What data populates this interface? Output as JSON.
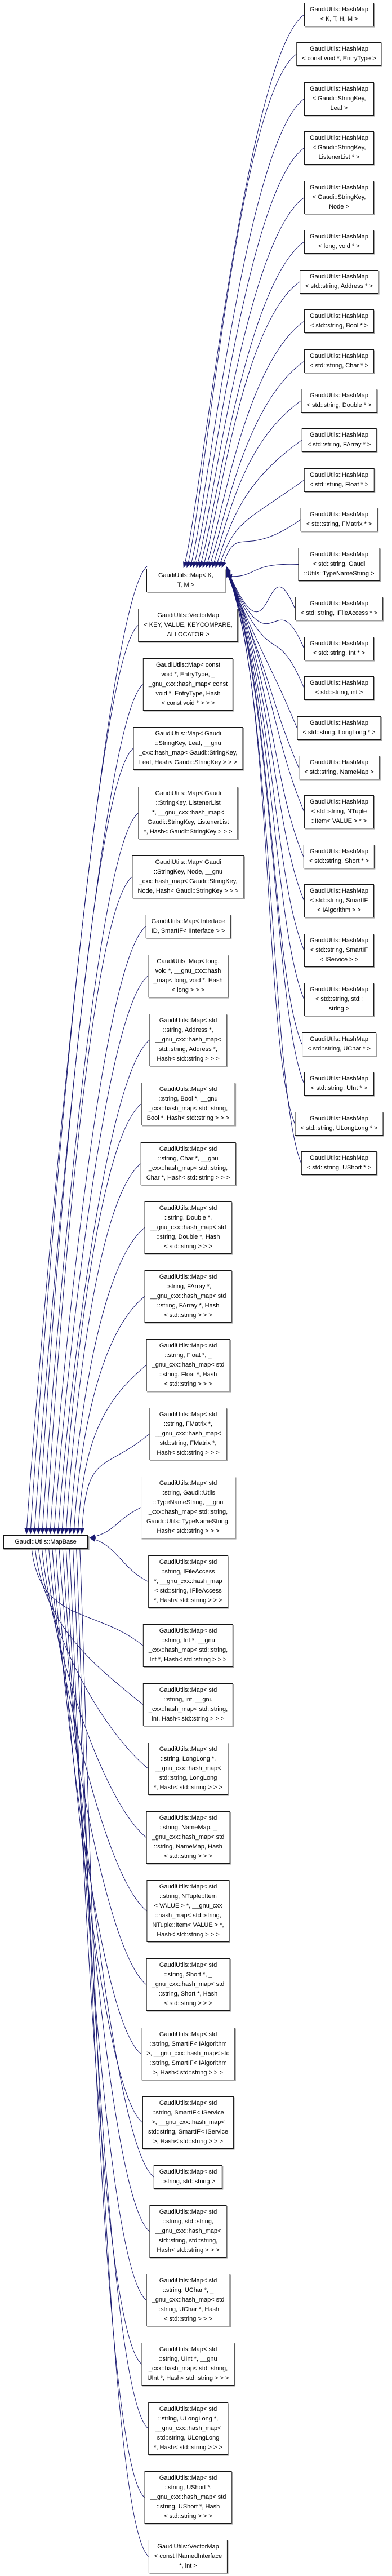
{
  "diagram": {
    "title": "Inheritance graph for Gaudi::Utils::MapBase",
    "colors": {
      "edge": "#191970",
      "node_border": "#141414",
      "node_background": "#ffffff",
      "text": "#000000",
      "page_background": "#ffffff"
    },
    "root": {
      "id": "mapbase",
      "label": "Gaudi::Utils::MapBase"
    },
    "template_node": {
      "id": "map-template",
      "lines": [
        "GaudiUtils::Map< K,",
        "T, M >"
      ]
    },
    "edges": {
      "hashmap_nodes_point_to": "template_node",
      "map_nodes_point_to": "root",
      "template_node_points_to": "root",
      "arrow_style": "solid filled arrowhead, derived-to-base"
    },
    "hashmap_nodes": [
      {
        "lines": [
          "GaudiUtils::HashMap",
          "< K, T, H, M >"
        ]
      },
      {
        "lines": [
          "GaudiUtils::HashMap",
          "< const void *, EntryType >"
        ]
      },
      {
        "lines": [
          "GaudiUtils::HashMap",
          "< Gaudi::StringKey,",
          "Leaf >"
        ]
      },
      {
        "lines": [
          "GaudiUtils::HashMap",
          "< Gaudi::StringKey,",
          "ListenerList * >"
        ]
      },
      {
        "lines": [
          "GaudiUtils::HashMap",
          "< Gaudi::StringKey,",
          "Node >"
        ]
      },
      {
        "lines": [
          "GaudiUtils::HashMap",
          "< long, void * >"
        ]
      },
      {
        "lines": [
          "GaudiUtils::HashMap",
          "< std::string, Address * >"
        ]
      },
      {
        "lines": [
          "GaudiUtils::HashMap",
          "< std::string, Bool * >"
        ]
      },
      {
        "lines": [
          "GaudiUtils::HashMap",
          "< std::string, Char * >"
        ]
      },
      {
        "lines": [
          "GaudiUtils::HashMap",
          "< std::string, Double * >"
        ]
      },
      {
        "lines": [
          "GaudiUtils::HashMap",
          "< std::string, FArray * >"
        ]
      },
      {
        "lines": [
          "GaudiUtils::HashMap",
          "< std::string, Float * >"
        ]
      },
      {
        "lines": [
          "GaudiUtils::HashMap",
          "< std::string, FMatrix * >"
        ]
      },
      {
        "lines": [
          "GaudiUtils::HashMap",
          "< std::string, Gaudi",
          "::Utils::TypeNameString >"
        ]
      },
      {
        "lines": [
          "GaudiUtils::HashMap",
          "< std::string, IFileAccess * >"
        ]
      },
      {
        "lines": [
          "GaudiUtils::HashMap",
          "< std::string, Int * >"
        ]
      },
      {
        "lines": [
          "GaudiUtils::HashMap",
          "< std::string, int >"
        ]
      },
      {
        "lines": [
          "GaudiUtils::HashMap",
          "< std::string, LongLong * >"
        ]
      },
      {
        "lines": [
          "GaudiUtils::HashMap",
          "< std::string, NameMap >"
        ]
      },
      {
        "lines": [
          "GaudiUtils::HashMap",
          "< std::string, NTuple",
          "::Item< VALUE > * >"
        ]
      },
      {
        "lines": [
          "GaudiUtils::HashMap",
          "< std::string, Short * >"
        ]
      },
      {
        "lines": [
          "GaudiUtils::HashMap",
          "< std::string, SmartIF",
          "< IAlgorithm > >"
        ]
      },
      {
        "lines": [
          "GaudiUtils::HashMap",
          "< std::string, SmartIF",
          "< IService > >"
        ]
      },
      {
        "lines": [
          "GaudiUtils::HashMap",
          "< std::string, std::",
          "string >"
        ]
      },
      {
        "lines": [
          "GaudiUtils::HashMap",
          "< std::string, UChar * >"
        ]
      },
      {
        "lines": [
          "GaudiUtils::HashMap",
          "< std::string, UInt * >"
        ]
      },
      {
        "lines": [
          "GaudiUtils::HashMap",
          "< std::string, ULongLong * >"
        ]
      },
      {
        "lines": [
          "GaudiUtils::HashMap",
          "< std::string, UShort * >"
        ]
      }
    ],
    "map_nodes": [
      {
        "lines": [
          "GaudiUtils::VectorMap",
          "< KEY, VALUE, KEYCOMPARE,",
          "ALLOCATOR >"
        ]
      },
      {
        "lines": [
          "GaudiUtils::Map< const",
          "void *, EntryType, _",
          "_gnu_cxx::hash_map< const",
          "void *, EntryType, Hash",
          "< const void * > > >"
        ]
      },
      {
        "lines": [
          "GaudiUtils::Map< Gaudi",
          "::StringKey, Leaf, __gnu",
          "_cxx::hash_map< Gaudi::StringKey,",
          "Leaf, Hash< Gaudi::StringKey > > >"
        ]
      },
      {
        "lines": [
          "GaudiUtils::Map< Gaudi",
          "::StringKey, ListenerList",
          "*, __gnu_cxx::hash_map<",
          "Gaudi::StringKey, ListenerList",
          "*, Hash< Gaudi::StringKey > > >"
        ]
      },
      {
        "lines": [
          "GaudiUtils::Map< Gaudi",
          "::StringKey, Node, __gnu",
          "_cxx::hash_map< Gaudi::StringKey,",
          "Node, Hash< Gaudi::StringKey > > >"
        ]
      },
      {
        "lines": [
          "GaudiUtils::Map< Interface",
          "ID, SmartIF< IInterface > >"
        ]
      },
      {
        "lines": [
          "GaudiUtils::Map< long,",
          "void *, __gnu_cxx::hash",
          "_map< long, void *, Hash",
          "< long > > >"
        ]
      },
      {
        "lines": [
          "GaudiUtils::Map< std",
          "::string, Address *,",
          "__gnu_cxx::hash_map<",
          "std::string, Address *,",
          "Hash< std::string > > >"
        ]
      },
      {
        "lines": [
          "GaudiUtils::Map< std",
          "::string, Bool *, __gnu",
          "_cxx::hash_map< std::string,",
          "Bool *, Hash< std::string > > >"
        ]
      },
      {
        "lines": [
          "GaudiUtils::Map< std",
          "::string, Char *, __gnu",
          "_cxx::hash_map< std::string,",
          "Char *, Hash< std::string > > >"
        ]
      },
      {
        "lines": [
          "GaudiUtils::Map< std",
          "::string, Double *,",
          "__gnu_cxx::hash_map< std",
          "::string, Double *, Hash",
          "< std::string > > >"
        ]
      },
      {
        "lines": [
          "GaudiUtils::Map< std",
          "::string, FArray *,",
          "__gnu_cxx::hash_map< std",
          "::string, FArray *, Hash",
          "< std::string > > >"
        ]
      },
      {
        "lines": [
          "GaudiUtils::Map< std",
          "::string, Float *, _",
          "_gnu_cxx::hash_map< std",
          "::string, Float *, Hash",
          "< std::string > > >"
        ]
      },
      {
        "lines": [
          "GaudiUtils::Map< std",
          "::string, FMatrix *,",
          "__gnu_cxx::hash_map<",
          "std::string, FMatrix *,",
          "Hash< std::string > > >"
        ]
      },
      {
        "lines": [
          "GaudiUtils::Map< std",
          "::string, Gaudi::Utils",
          "::TypeNameString, __gnu",
          "_cxx::hash_map< std::string,",
          "Gaudi::Utils::TypeNameString,",
          "Hash< std::string > > >"
        ]
      },
      {
        "lines": [
          "GaudiUtils::Map< std",
          "::string, IFileAccess",
          "*, __gnu_cxx::hash_map",
          "< std::string, IFileAccess",
          "*, Hash< std::string > > >"
        ]
      },
      {
        "lines": [
          "GaudiUtils::Map< std",
          "::string, Int *, __gnu",
          "_cxx::hash_map< std::string,",
          "Int *, Hash< std::string > > >"
        ]
      },
      {
        "lines": [
          "GaudiUtils::Map< std",
          "::string, int, __gnu",
          "_cxx::hash_map< std::string,",
          "int, Hash< std::string > > >"
        ]
      },
      {
        "lines": [
          "GaudiUtils::Map< std",
          "::string, LongLong *,",
          "__gnu_cxx::hash_map<",
          "std::string, LongLong",
          "*, Hash< std::string > > >"
        ]
      },
      {
        "lines": [
          "GaudiUtils::Map< std",
          "::string, NameMap, _",
          "_gnu_cxx::hash_map< std",
          "::string, NameMap, Hash",
          "< std::string > > >"
        ]
      },
      {
        "lines": [
          "GaudiUtils::Map< std",
          "::string, NTuple::Item",
          "< VALUE > *, __gnu_cxx",
          "::hash_map< std::string,",
          "NTuple::Item< VALUE > *,",
          "Hash< std::string > > >"
        ]
      },
      {
        "lines": [
          "GaudiUtils::Map< std",
          "::string, Short *, _",
          "_gnu_cxx::hash_map< std",
          "::string, Short *, Hash",
          "< std::string > > >"
        ]
      },
      {
        "lines": [
          "GaudiUtils::Map< std",
          "::string, SmartIF< IAlgorithm",
          ">, __gnu_cxx::hash_map< std",
          "::string, SmartIF< IAlgorithm",
          ">, Hash< std::string > > >"
        ]
      },
      {
        "lines": [
          "GaudiUtils::Map< std",
          "::string, SmartIF< IService",
          ">, __gnu_cxx::hash_map<",
          "std::string, SmartIF< IService",
          ">, Hash< std::string > > >"
        ]
      },
      {
        "lines": [
          "GaudiUtils::Map< std",
          "::string, std::string >"
        ]
      },
      {
        "lines": [
          "GaudiUtils::Map< std",
          "::string, std::string,",
          "__gnu_cxx::hash_map<",
          "std::string, std::string,",
          "Hash< std::string > > >"
        ]
      },
      {
        "lines": [
          "GaudiUtils::Map< std",
          "::string, UChar *, _",
          "_gnu_cxx::hash_map< std",
          "::string, UChar *, Hash",
          "< std::string > > >"
        ]
      },
      {
        "lines": [
          "GaudiUtils::Map< std",
          "::string, UInt *, __gnu",
          "_cxx::hash_map< std::string,",
          "UInt *, Hash< std::string > > >"
        ]
      },
      {
        "lines": [
          "GaudiUtils::Map< std",
          "::string, ULongLong *,",
          "__gnu_cxx::hash_map<",
          "std::string, ULongLong",
          "*, Hash< std::string > > >"
        ]
      },
      {
        "lines": [
          "GaudiUtils::Map< std",
          "::string, UShort *,",
          "__gnu_cxx::hash_map< std",
          "::string, UShort *, Hash",
          "< std::string > > >"
        ]
      },
      {
        "lines": [
          "GaudiUtils::VectorMap",
          "< const INamedInterface",
          "*, int >"
        ]
      }
    ]
  }
}
